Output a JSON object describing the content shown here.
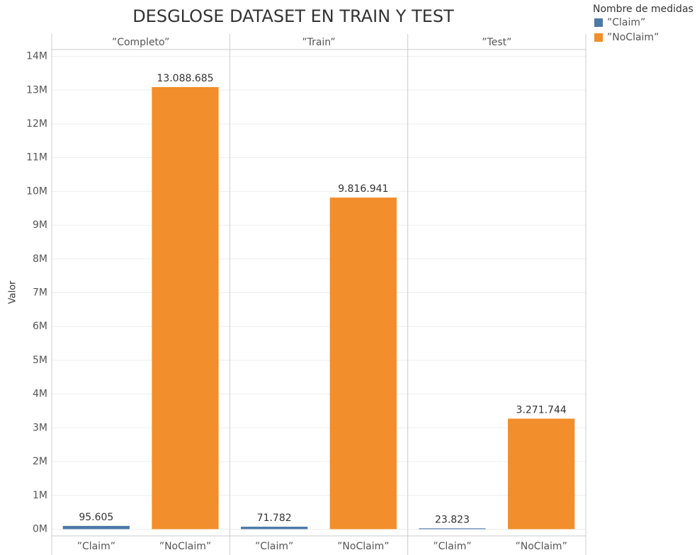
{
  "chart_data": {
    "type": "bar",
    "title": "DESGLOSE DATASET EN TRAIN Y TEST",
    "y_label": "Valor",
    "legend_title": "Nombre de medidas",
    "panels": [
      "”Completo”",
      "”Train”",
      "”Test”"
    ],
    "series": [
      {
        "name": "”Claim”",
        "color": "#4e79a7",
        "values": [
          95605,
          71782,
          23823
        ],
        "value_labels": [
          "95.605",
          "71.782",
          "23.823"
        ]
      },
      {
        "name": "”NoClaim”",
        "color": "#f28e2b",
        "values": [
          13088685,
          9816941,
          3271744
        ],
        "value_labels": [
          "13.088.685",
          "9.816.941",
          "3.271.744"
        ]
      }
    ],
    "ylim": [
      -200000,
      14200000
    ],
    "yticks": [
      {
        "value": 0,
        "label": "0M"
      },
      {
        "value": 1000000,
        "label": "1M"
      },
      {
        "value": 2000000,
        "label": "2M"
      },
      {
        "value": 3000000,
        "label": "3M"
      },
      {
        "value": 4000000,
        "label": "4M"
      },
      {
        "value": 5000000,
        "label": "5M"
      },
      {
        "value": 6000000,
        "label": "6M"
      },
      {
        "value": 7000000,
        "label": "7M"
      },
      {
        "value": 8000000,
        "label": "8M"
      },
      {
        "value": 9000000,
        "label": "9M"
      },
      {
        "value": 10000000,
        "label": "10M"
      },
      {
        "value": 11000000,
        "label": "11M"
      },
      {
        "value": 12000000,
        "label": "12M"
      },
      {
        "value": 13000000,
        "label": "13M"
      },
      {
        "value": 14000000,
        "label": "14M"
      }
    ],
    "grid": true
  }
}
